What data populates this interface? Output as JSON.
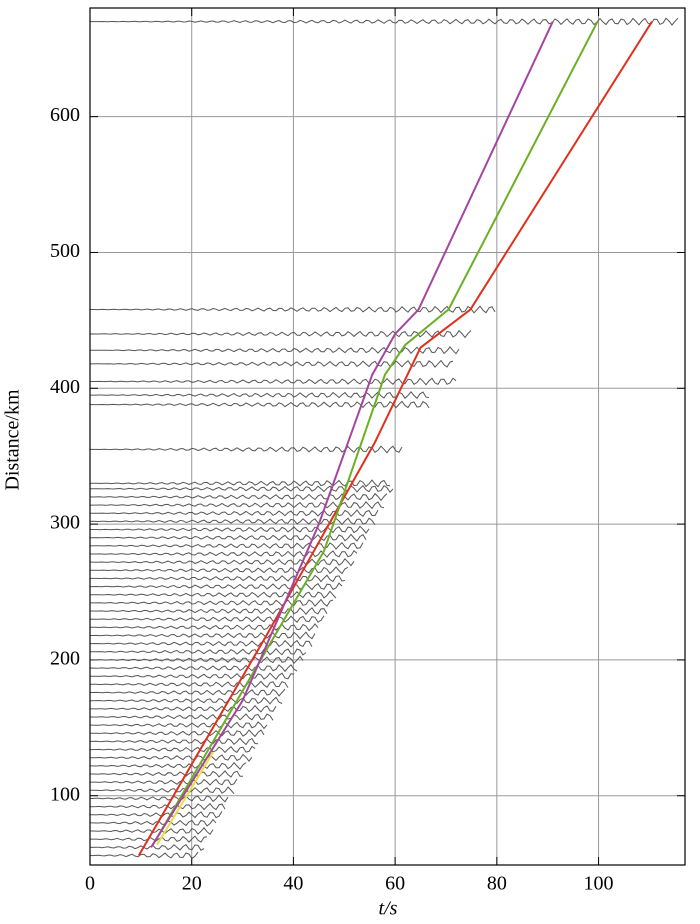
{
  "chart_data": {
    "type": "line",
    "xlabel": "t/s",
    "ylabel": "Distance/km",
    "xlim": [
      0,
      117
    ],
    "ylim": [
      49,
      680
    ],
    "xticks": [
      0,
      20,
      40,
      60,
      80,
      100
    ],
    "yticks": [
      100,
      200,
      300,
      400,
      500,
      600
    ],
    "grid": true,
    "traces": {
      "color": "#555555",
      "distance": [
        56,
        62,
        68,
        74,
        80,
        86,
        92,
        98,
        104,
        110,
        116,
        122,
        128,
        134,
        140,
        146,
        152,
        158,
        164,
        170,
        176,
        182,
        188,
        194,
        200,
        206,
        212,
        218,
        224,
        230,
        236,
        242,
        248,
        254,
        260,
        266,
        272,
        278,
        284,
        290,
        296,
        302,
        308,
        314,
        320,
        326,
        330,
        355,
        388,
        395,
        405,
        418,
        428,
        440,
        458,
        670
      ],
      "end_time": [
        21.8,
        22.7,
        23.5,
        24.4,
        25.2,
        26,
        26.9,
        27.7,
        28.6,
        29.4,
        30.2,
        31.1,
        31.9,
        32.8,
        33.6,
        34.4,
        35.3,
        36.1,
        37,
        37.8,
        38.6,
        39.5,
        40.3,
        41.2,
        42,
        42.8,
        43.7,
        44.5,
        45.4,
        46.2,
        47,
        47.9,
        48.7,
        49.6,
        50.4,
        51.2,
        52.1,
        52.9,
        53.8,
        54.6,
        55.4,
        56.3,
        57.1,
        58,
        58.8,
        59.6,
        59.5,
        61.5,
        67,
        67,
        72,
        71.5,
        73,
        75,
        80,
        116
      ]
    },
    "series": [
      {
        "color": "#e0301e",
        "x": [
          9.6,
          35,
          56,
          65,
          74.8,
          110.5
        ],
        "values": [
          56,
          220,
          360,
          430,
          458,
          670
        ]
      },
      {
        "color": "#6ab023",
        "x": [
          12.4,
          46,
          58,
          62,
          70.5,
          99.8
        ],
        "values": [
          64,
          280,
          410,
          432,
          458,
          670
        ]
      },
      {
        "color": "#a545a0",
        "x": [
          12,
          30,
          45,
          55.5,
          60,
          64.6,
          91
        ],
        "values": [
          62,
          170,
          300,
          410,
          440,
          458,
          670
        ]
      },
      {
        "color": "#e8e040",
        "x": [
          13.2,
          24.2
        ],
        "values": [
          64,
          132
        ]
      }
    ]
  }
}
